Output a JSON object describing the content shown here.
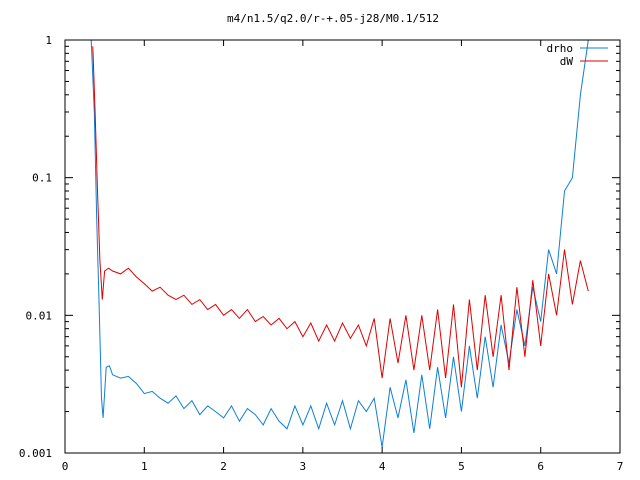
{
  "chart_data": {
    "type": "line",
    "title": "m4/n1.5/q2.0/r-+.05-j28/M0.1/512",
    "xlabel": "",
    "ylabel": "",
    "xlim": [
      0,
      7
    ],
    "ylim": [
      0.001,
      1
    ],
    "yscale": "log",
    "grid": false,
    "legend_position": "top-right",
    "x_ticks": [
      "0",
      "1",
      "2",
      "3",
      "4",
      "5",
      "6",
      "7"
    ],
    "y_ticks": [
      "0.001",
      "0.01",
      "0.1",
      "1"
    ],
    "series": [
      {
        "name": "drho",
        "color": "#0f7fd7",
        "x": [
          0.33,
          0.37,
          0.4,
          0.43,
          0.46,
          0.48,
          0.52,
          0.56,
          0.6,
          0.7,
          0.8,
          0.9,
          1.0,
          1.1,
          1.2,
          1.3,
          1.4,
          1.5,
          1.6,
          1.7,
          1.8,
          1.9,
          2.0,
          2.1,
          2.2,
          2.3,
          2.4,
          2.5,
          2.6,
          2.7,
          2.8,
          2.9,
          3.0,
          3.1,
          3.2,
          3.3,
          3.4,
          3.5,
          3.6,
          3.7,
          3.8,
          3.9,
          4.0,
          4.1,
          4.2,
          4.3,
          4.4,
          4.5,
          4.6,
          4.7,
          4.8,
          4.9,
          5.0,
          5.1,
          5.2,
          5.3,
          5.4,
          5.5,
          5.6,
          5.7,
          5.8,
          5.9,
          6.0,
          6.1,
          6.2,
          6.3,
          6.4,
          6.5,
          6.6
        ],
        "y": [
          1.0,
          0.3,
          0.05,
          0.012,
          0.0025,
          0.0018,
          0.0042,
          0.0043,
          0.0037,
          0.0035,
          0.0036,
          0.0032,
          0.0027,
          0.0028,
          0.0025,
          0.0023,
          0.0026,
          0.0021,
          0.0024,
          0.0019,
          0.0022,
          0.002,
          0.0018,
          0.0022,
          0.0017,
          0.0021,
          0.0019,
          0.0016,
          0.0021,
          0.0017,
          0.0015,
          0.0022,
          0.0016,
          0.0022,
          0.0015,
          0.0023,
          0.0016,
          0.0024,
          0.0015,
          0.0024,
          0.002,
          0.0025,
          0.0011,
          0.003,
          0.0018,
          0.0034,
          0.0014,
          0.0037,
          0.0015,
          0.0042,
          0.0018,
          0.005,
          0.002,
          0.006,
          0.0025,
          0.007,
          0.003,
          0.0085,
          0.0045,
          0.011,
          0.006,
          0.016,
          0.009,
          0.03,
          0.02,
          0.08,
          0.1,
          0.4,
          1.0
        ]
      },
      {
        "name": "dW",
        "color": "#e00000",
        "x": [
          0.35,
          0.38,
          0.41,
          0.44,
          0.47,
          0.5,
          0.55,
          0.6,
          0.7,
          0.8,
          0.9,
          1.0,
          1.1,
          1.2,
          1.3,
          1.4,
          1.5,
          1.6,
          1.7,
          1.8,
          1.9,
          2.0,
          2.1,
          2.2,
          2.3,
          2.4,
          2.5,
          2.6,
          2.7,
          2.8,
          2.9,
          3.0,
          3.1,
          3.2,
          3.3,
          3.4,
          3.5,
          3.6,
          3.7,
          3.8,
          3.9,
          4.0,
          4.1,
          4.2,
          4.3,
          4.4,
          4.5,
          4.6,
          4.7,
          4.8,
          4.9,
          5.0,
          5.1,
          5.2,
          5.3,
          5.4,
          5.5,
          5.6,
          5.7,
          5.8,
          5.9,
          6.0,
          6.1,
          6.2,
          6.3,
          6.4,
          6.5,
          6.6
        ],
        "y": [
          0.9,
          0.3,
          0.08,
          0.025,
          0.013,
          0.021,
          0.022,
          0.021,
          0.02,
          0.022,
          0.019,
          0.017,
          0.015,
          0.016,
          0.014,
          0.013,
          0.014,
          0.012,
          0.013,
          0.011,
          0.012,
          0.01,
          0.011,
          0.0095,
          0.011,
          0.009,
          0.0098,
          0.0085,
          0.0095,
          0.008,
          0.009,
          0.007,
          0.0088,
          0.0065,
          0.0085,
          0.0065,
          0.0088,
          0.0068,
          0.0085,
          0.006,
          0.0095,
          0.0035,
          0.0095,
          0.0045,
          0.01,
          0.004,
          0.01,
          0.004,
          0.011,
          0.0035,
          0.012,
          0.003,
          0.013,
          0.004,
          0.014,
          0.005,
          0.014,
          0.004,
          0.016,
          0.005,
          0.018,
          0.006,
          0.02,
          0.01,
          0.03,
          0.012,
          0.025,
          0.015
        ]
      }
    ]
  }
}
